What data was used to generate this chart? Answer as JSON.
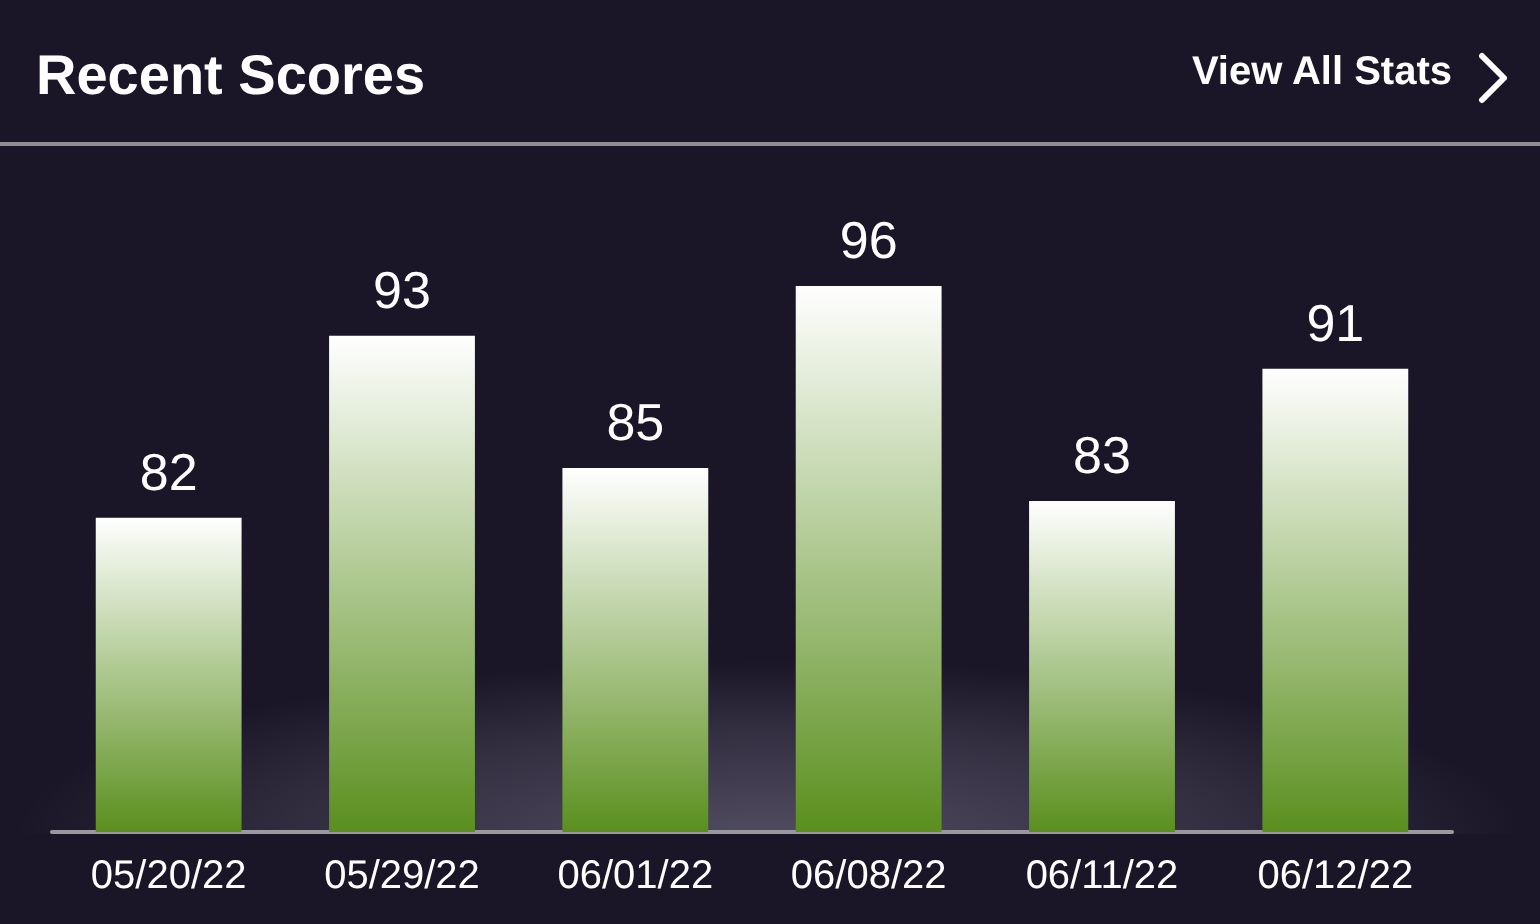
{
  "chart_data": {
    "type": "bar",
    "title": "Recent Scores",
    "annotations": [
      "View All Stats"
    ],
    "categories": [
      "05/20/22",
      "05/29/22",
      "06/01/22",
      "06/08/22",
      "06/11/22",
      "06/12/22"
    ],
    "values": [
      82,
      93,
      85,
      96,
      83,
      91
    ],
    "color": "#5a8f1e",
    "ylim": [
      63,
      96
    ],
    "data_labels": true,
    "tick_labels": "x"
  }
}
